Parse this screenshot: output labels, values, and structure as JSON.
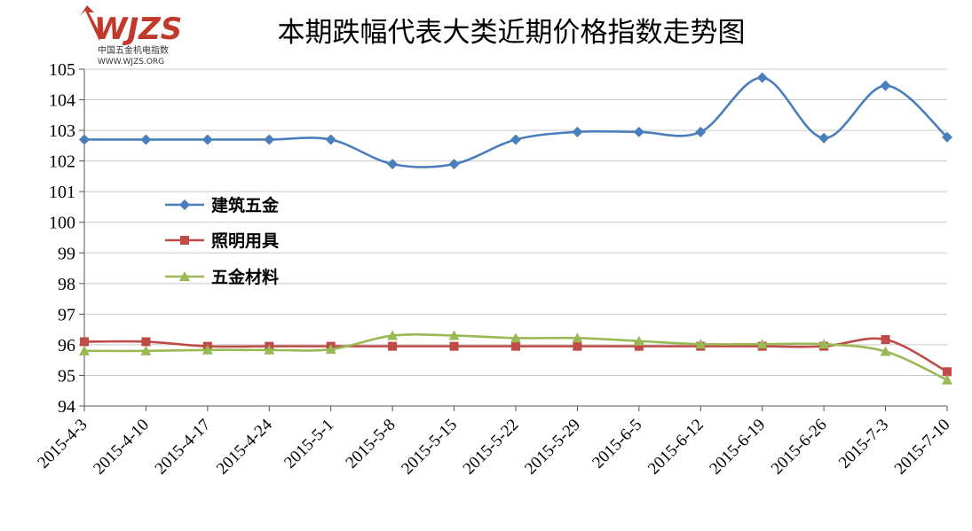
{
  "logo": {
    "mark": "WJZS",
    "subtitle": "中国五金机电指数",
    "url": "WWW.WJZS.ORG",
    "color": "#c0392b"
  },
  "chart_data": {
    "type": "line",
    "title": "本期跌幅代表大类近期价格指数走势图",
    "xlabel": "",
    "ylabel": "",
    "ylim": [
      94,
      105
    ],
    "yticks": [
      94,
      95,
      96,
      97,
      98,
      99,
      100,
      101,
      102,
      103,
      104,
      105
    ],
    "grid": true,
    "legend_position": "left",
    "categories": [
      "2015-4-3",
      "2015-4-10",
      "2015-4-17",
      "2015-4-24",
      "2015-5-1",
      "2015-5-8",
      "2015-5-15",
      "2015-5-22",
      "2015-5-29",
      "2015-6-5",
      "2015-6-12",
      "2015-6-19",
      "2015-6-26",
      "2015-7-3",
      "2015-7-10"
    ],
    "series": [
      {
        "name": "建筑五金",
        "color": "#4a7ebb",
        "marker": "diamond",
        "values": [
          102.7,
          102.7,
          102.7,
          102.7,
          102.7,
          101.9,
          101.9,
          102.7,
          102.95,
          102.95,
          102.95,
          104.72,
          102.75,
          104.46,
          102.78
        ]
      },
      {
        "name": "照明用具",
        "color": "#be4b48",
        "marker": "square",
        "values": [
          96.1,
          96.1,
          95.95,
          95.95,
          95.95,
          95.95,
          95.95,
          95.95,
          95.95,
          95.95,
          95.95,
          95.95,
          95.95,
          96.17,
          95.12
        ]
      },
      {
        "name": "五金材料",
        "color": "#98b954",
        "marker": "triangle",
        "values": [
          95.8,
          95.8,
          95.83,
          95.83,
          95.85,
          96.3,
          96.3,
          96.22,
          96.22,
          96.12,
          96.02,
          96.02,
          96.02,
          95.78,
          94.85
        ]
      }
    ]
  }
}
